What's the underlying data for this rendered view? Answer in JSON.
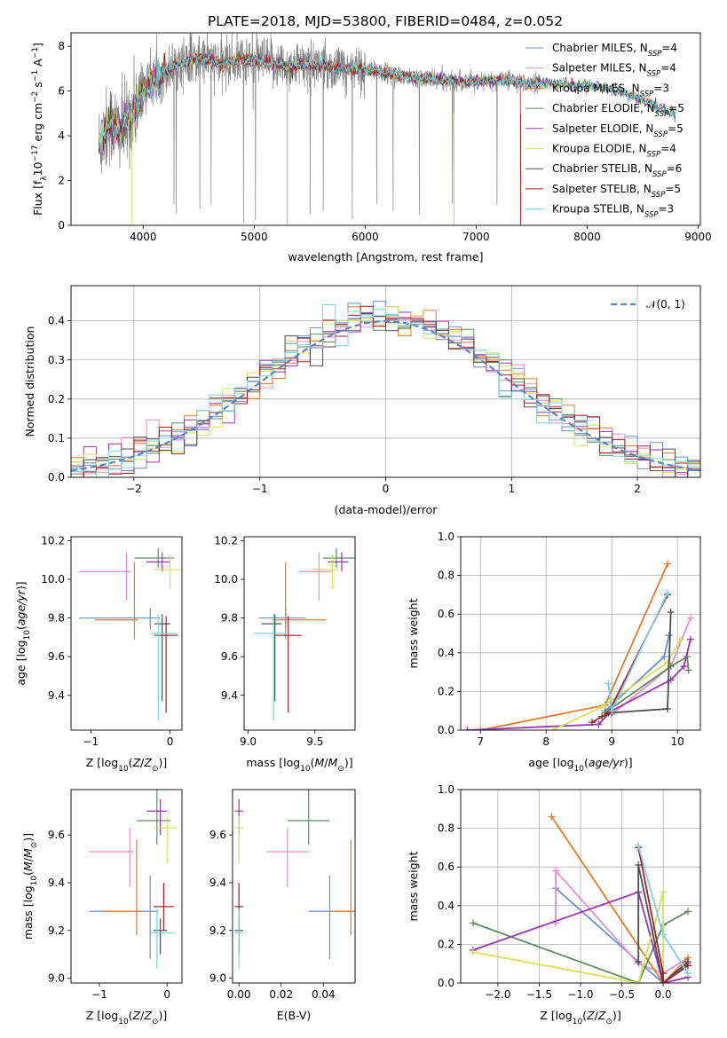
{
  "figure": {
    "title": "PLATE=2018, MJD=53800, FIBERID=0484, z=0.052"
  },
  "models": [
    {
      "key": "chab_miles",
      "name": "Chabrier MILES, N",
      "nssp": "=4",
      "color": "#6b8fd4",
      "z": -0.25,
      "zerr": [
        0.9,
        0.12
      ],
      "age": 9.8,
      "ageerr": [
        0.06,
        0.05
      ],
      "mass": 9.28,
      "masserr": [
        0.2,
        0.15
      ],
      "ebv": 0.043,
      "ebverr": [
        0.01,
        0.01
      ]
    },
    {
      "key": "salp_miles",
      "name": "Salpeter MILES, N",
      "nssp": "=4",
      "color": "#e68fc4",
      "z": -0.55,
      "zerr": [
        0.6,
        0.05
      ],
      "age": 10.04,
      "ageerr": [
        0.15,
        0.1
      ],
      "mass": 9.53,
      "masserr": [
        0.15,
        0.1
      ],
      "ebv": 0.023,
      "ebverr": [
        0.01,
        0.01
      ]
    },
    {
      "key": "krou_miles",
      "name": "Kroupa MILES, N",
      "nssp": "=3",
      "color": "#e07b2a",
      "z": -0.45,
      "zerr": [
        0.5,
        0.05
      ],
      "age": 9.79,
      "ageerr": [
        0.1,
        0.3
      ],
      "mass": 9.28,
      "masserr": [
        0.1,
        0.3
      ],
      "ebv": 0.053,
      "ebverr": [
        0.01,
        0.01
      ]
    },
    {
      "key": "chab_elodie",
      "name": "Chabrier ELODIE, N",
      "nssp": "=5",
      "color": "#5e8c60",
      "z": -0.15,
      "zerr": [
        0.3,
        0.2
      ],
      "age": 10.11,
      "ageerr": [
        0.05,
        0.05
      ],
      "mass": 9.66,
      "masserr": [
        0.1,
        0.25
      ],
      "ebv": 0.033,
      "ebverr": [
        0.01,
        0.01
      ]
    },
    {
      "key": "salp_elodie",
      "name": "Salpeter ELODIE, N",
      "nssp": "=5",
      "color": "#9a36b3",
      "z": -0.1,
      "zerr": [
        0.2,
        0.1
      ],
      "age": 10.09,
      "ageerr": [
        0.05,
        0.05
      ],
      "mass": 9.7,
      "masserr": [
        0.1,
        0.05
      ],
      "ebv": 0.0,
      "ebverr": [
        0.002,
        0.002
      ]
    },
    {
      "key": "krou_elodie",
      "name": "Kroupa ELODIE, N",
      "nssp": "=4",
      "color": "#d6e05a",
      "z": 0.0,
      "zerr": [
        0.2,
        0.15
      ],
      "age": 10.05,
      "ageerr": [
        0.1,
        0.08
      ],
      "mass": 9.63,
      "masserr": [
        0.15,
        0.05
      ],
      "ebv": 0.0,
      "ebverr": [
        0.002,
        0.002
      ]
    },
    {
      "key": "chab_stelib",
      "name": "Chabrier STELIB, N",
      "nssp": "=6",
      "color": "#4d4d4d",
      "z": -0.1,
      "zerr": [
        0.1,
        0.1
      ],
      "age": 9.77,
      "ageerr": [
        0.4,
        0.05
      ],
      "mass": 9.2,
      "masserr": [
        0.1,
        0.05
      ],
      "ebv": 0.0,
      "ebverr": [
        0.002,
        0.002
      ]
    },
    {
      "key": "salp_stelib",
      "name": "Salpeter STELIB, N",
      "nssp": "=5",
      "color": "#a3202a",
      "z": -0.05,
      "zerr": [
        0.15,
        0.15
      ],
      "age": 9.71,
      "ageerr": [
        0.4,
        0.1
      ],
      "mass": 9.3,
      "masserr": [
        0.1,
        0.1
      ],
      "ebv": 0.0,
      "ebverr": [
        0.002,
        0.002
      ]
    },
    {
      "key": "krou_stelib",
      "name": "Kroupa STELIB, N",
      "nssp": "=3",
      "color": "#78d4d8",
      "z": -0.15,
      "zerr": [
        0.1,
        0.25
      ],
      "age": 9.72,
      "ageerr": [
        0.45,
        0.1
      ],
      "mass": 9.19,
      "masserr": [
        0.15,
        0.1
      ],
      "ebv": 0.0,
      "ebverr": [
        0.002,
        0.002
      ]
    }
  ],
  "legend_sub": "SSP",
  "chart_data": [
    {
      "type": "line",
      "id": "spectrum",
      "title": "PLATE=2018, MJD=53800, FIBERID=0484, z=0.052",
      "xlabel": "wavelength [Angstrom, rest frame]",
      "ylabel": "Flux [f",
      "xlim": [
        3350,
        9020
      ],
      "ylim": [
        0,
        8.6
      ],
      "xticks": [
        4000,
        5000,
        6000,
        7000,
        8000,
        9000
      ],
      "yticks": [
        0,
        2,
        4,
        6,
        8
      ],
      "data_color": "#808080",
      "continuum_knots": [
        [
          3600,
          3.6
        ],
        [
          3700,
          4.6
        ],
        [
          3800,
          4.2
        ],
        [
          3900,
          5.0
        ],
        [
          4000,
          6.0
        ],
        [
          4100,
          6.5
        ],
        [
          4300,
          7.2
        ],
        [
          4500,
          7.5
        ],
        [
          4700,
          7.2
        ],
        [
          4900,
          7.4
        ],
        [
          5100,
          7.3
        ],
        [
          5300,
          7.1
        ],
        [
          5500,
          7.2
        ],
        [
          5800,
          7.0
        ],
        [
          6100,
          6.9
        ],
        [
          6400,
          6.6
        ],
        [
          6700,
          6.5
        ],
        [
          7000,
          6.4
        ],
        [
          7300,
          6.5
        ],
        [
          7500,
          6.3
        ],
        [
          7800,
          6.3
        ],
        [
          8100,
          6.2
        ],
        [
          8300,
          6.0
        ],
        [
          8500,
          5.6
        ],
        [
          8800,
          4.9
        ]
      ],
      "data_range": [
        3600,
        7600
      ],
      "model_range": [
        3600,
        8800
      ]
    },
    {
      "type": "histogram",
      "id": "residuals",
      "xlabel": "(data-model)/error",
      "ylabel": "Normed distribution",
      "xlim": [
        -2.5,
        2.5
      ],
      "ylim": [
        0,
        0.49
      ],
      "xticks": [
        -2,
        -1,
        0,
        1,
        2
      ],
      "yticks": [
        0.0,
        0.1,
        0.2,
        0.3,
        0.4
      ],
      "bin_width": 0.1,
      "reference": {
        "label": "𝒩(0, 1)",
        "mean": 0,
        "sigma": 1,
        "color": "#5b84c8"
      }
    },
    {
      "type": "scatter",
      "id": "z_age",
      "xlabel": "Z [log10(Z/Z☉)]",
      "ylabel": "age  [log10(age/yr)]",
      "xlim": [
        -1.25,
        0.15
      ],
      "ylim": [
        9.22,
        10.22
      ],
      "xticks": [
        -1,
        0
      ],
      "yticks": [
        9.4,
        9.6,
        9.8,
        10.0,
        10.2
      ]
    },
    {
      "type": "scatter",
      "id": "mass_age",
      "xlabel": "mass [log10(M/M☉)]",
      "ylabel": "",
      "xlim": [
        8.97,
        9.8
      ],
      "ylim": [
        9.22,
        10.22
      ],
      "xticks": [
        9.0,
        9.5
      ],
      "yticks": [
        9.4,
        9.6,
        9.8,
        10.0,
        10.2
      ]
    },
    {
      "type": "line",
      "id": "age_mw",
      "xlabel": "age  [log10(age/yr)]",
      "ylabel": "mass weight",
      "xlim": [
        6.7,
        10.35
      ],
      "ylim": [
        0,
        1.0
      ],
      "xticks": [
        7,
        8,
        9,
        10
      ],
      "yticks": [
        0.0,
        0.2,
        0.4,
        0.6,
        0.8,
        1.0
      ],
      "series": [
        {
          "model": "chab_miles",
          "points": [
            [
              8.9,
              0.1
            ],
            [
              9.8,
              0.38
            ],
            [
              9.87,
              0.49
            ]
          ]
        },
        {
          "model": "salp_miles",
          "points": [
            [
              9.0,
              0.08
            ],
            [
              9.9,
              0.33
            ],
            [
              10.2,
              0.58
            ]
          ]
        },
        {
          "model": "krou_miles",
          "points": [
            [
              7.0,
              0.0
            ],
            [
              8.9,
              0.13
            ],
            [
              9.85,
              0.86
            ]
          ]
        },
        {
          "model": "chab_elodie",
          "points": [
            [
              8.9,
              0.09
            ],
            [
              9.9,
              0.33
            ],
            [
              10.15,
              0.38
            ],
            [
              10.17,
              0.31
            ]
          ]
        },
        {
          "model": "salp_elodie",
          "points": [
            [
              6.8,
              0.0
            ],
            [
              8.8,
              0.03
            ],
            [
              9.0,
              0.1
            ],
            [
              9.9,
              0.26
            ],
            [
              10.1,
              0.33
            ],
            [
              10.2,
              0.47
            ]
          ]
        },
        {
          "model": "krou_elodie",
          "points": [
            [
              8.1,
              0.0
            ],
            [
              8.85,
              0.12
            ],
            [
              9.85,
              0.35
            ],
            [
              10.05,
              0.47
            ]
          ]
        },
        {
          "model": "chab_stelib",
          "points": [
            [
              8.85,
              0.07
            ],
            [
              9.0,
              0.09
            ],
            [
              9.85,
              0.11
            ],
            [
              9.9,
              0.61
            ]
          ]
        },
        {
          "model": "salp_stelib",
          "points": [
            [
              8.7,
              0.04
            ],
            [
              8.95,
              0.09
            ],
            [
              9.85,
              0.7
            ]
          ]
        },
        {
          "model": "krou_stelib",
          "points": [
            [
              8.95,
              0.24
            ],
            [
              9.0,
              0.1
            ],
            [
              9.85,
              0.71
            ]
          ]
        }
      ]
    },
    {
      "type": "scatter",
      "id": "z_mass",
      "xlabel": "Z [log10(Z/Z☉)]",
      "ylabel": "mass [log10(M/M☉)]",
      "xlim": [
        -1.42,
        0.22
      ],
      "ylim": [
        8.98,
        9.79
      ],
      "xticks": [
        -1,
        0
      ],
      "yticks": [
        9.0,
        9.2,
        9.4,
        9.6
      ]
    },
    {
      "type": "scatter",
      "id": "ebv_mass",
      "xlabel": "E(B-V)",
      "ylabel": "",
      "xlim": [
        -0.003,
        0.055
      ],
      "ylim": [
        8.98,
        9.79
      ],
      "xticks": [
        0.0,
        0.02,
        0.04
      ],
      "yticks": [
        9.0,
        9.2,
        9.4,
        9.6
      ]
    },
    {
      "type": "line",
      "id": "z_mw",
      "xlabel": "Z [log10(Z/Z☉)]",
      "ylabel": "mass weight",
      "xlim": [
        -2.45,
        0.45
      ],
      "ylim": [
        0,
        1.0
      ],
      "xticks": [
        -2.0,
        -1.5,
        -1.0,
        -0.5,
        0.0
      ],
      "yticks": [
        0.0,
        0.2,
        0.4,
        0.6,
        0.8,
        1.0
      ],
      "series": [
        {
          "model": "chab_miles",
          "points": [
            [
              -1.3,
              0.49
            ],
            [
              -0.3,
              0.11
            ],
            [
              0.0,
              0.0
            ],
            [
              0.3,
              0.1
            ]
          ]
        },
        {
          "model": "salp_miles",
          "points": [
            [
              -1.3,
              0.31
            ],
            [
              -1.3,
              0.58
            ],
            [
              -0.3,
              0.1
            ],
            [
              0.0,
              0.05
            ],
            [
              0.3,
              0.13
            ]
          ]
        },
        {
          "model": "krou_miles",
          "points": [
            [
              -1.35,
              0.86
            ],
            [
              0.0,
              0.0
            ],
            [
              0.3,
              0.13
            ]
          ]
        },
        {
          "model": "chab_elodie",
          "points": [
            [
              -2.3,
              0.31
            ],
            [
              -0.3,
              0.0
            ],
            [
              0.0,
              0.3
            ],
            [
              0.3,
              0.37
            ]
          ]
        },
        {
          "model": "salp_elodie",
          "points": [
            [
              -2.3,
              0.17
            ],
            [
              -0.3,
              0.47
            ],
            [
              0.0,
              0.0
            ],
            [
              0.3,
              0.03
            ]
          ]
        },
        {
          "model": "krou_elodie",
          "points": [
            [
              -2.3,
              0.16
            ],
            [
              -0.3,
              0.0
            ],
            [
              0.0,
              0.47
            ],
            [
              0.0,
              0.0
            ]
          ]
        },
        {
          "model": "chab_stelib",
          "points": [
            [
              -0.3,
              0.11
            ],
            [
              -0.3,
              0.61
            ],
            [
              0.0,
              0.0
            ],
            [
              0.3,
              0.11
            ]
          ]
        },
        {
          "model": "salp_stelib",
          "points": [
            [
              -0.3,
              0.7
            ],
            [
              0.0,
              0.05
            ],
            [
              0.0,
              0.0
            ],
            [
              0.3,
              0.09
            ]
          ]
        },
        {
          "model": "krou_stelib",
          "points": [
            [
              -0.3,
              0.71
            ],
            [
              0.0,
              0.25
            ],
            [
              0.3,
              0.05
            ]
          ]
        }
      ]
    }
  ]
}
